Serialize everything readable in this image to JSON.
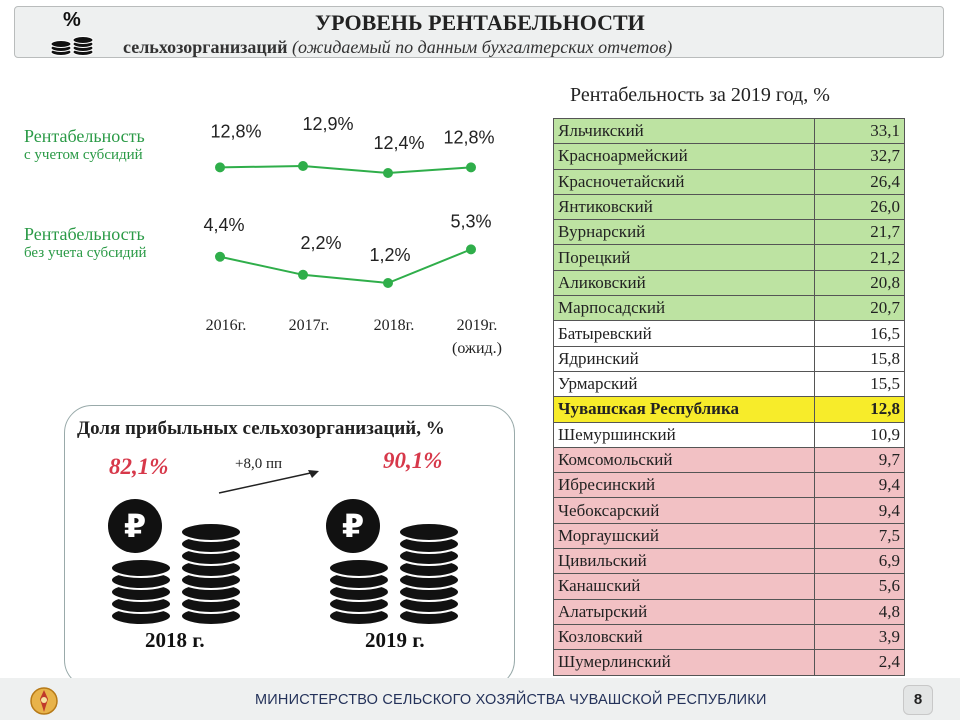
{
  "header": {
    "percent_sign": "%",
    "title": "УРОВЕНЬ РЕНТАБЕЛЬНОСТИ",
    "subtitle_bold": "сельхозорганизаций",
    "subtitle_italic": "(ожидаемый по данным бухгалтерских отчетов)"
  },
  "trend": {
    "series_with": {
      "label_main": "Рентабельность",
      "label_sub": "с учетом субсидий",
      "values": [
        "12,8%",
        "12,9%",
        "12,4%",
        "12,8%"
      ],
      "numbers": [
        12.8,
        12.9,
        12.4,
        12.8
      ]
    },
    "series_without": {
      "label_main": "Рентабельность",
      "label_sub": "без учета субсидий",
      "values": [
        "4,4%",
        "2,2%",
        "1,2%",
        "5,3%"
      ],
      "numbers": [
        4.4,
        2.2,
        1.2,
        5.3
      ]
    },
    "years": [
      "2016г.",
      "2017г.",
      "2018г.",
      "2019г."
    ],
    "year_note": "(ожид.)"
  },
  "profit_share": {
    "title": "Доля прибыльных сельхозорганизаций, %",
    "value_2018": "82,1%",
    "value_2019": "90,1%",
    "delta": "+8,0 пп",
    "year_2018": "2018 г.",
    "year_2019": "2019 г."
  },
  "table": {
    "title": "Рентабельность  за 2019 год, %",
    "rows": [
      {
        "name": "Яльчикский",
        "value": "33,1",
        "status": "green"
      },
      {
        "name": "Красноармейский",
        "value": "32,7",
        "status": "green"
      },
      {
        "name": "Красночетайский",
        "value": "26,4",
        "status": "green"
      },
      {
        "name": "Янтиковский",
        "value": "26,0",
        "status": "green"
      },
      {
        "name": "Вурнарский",
        "value": "21,7",
        "status": "green"
      },
      {
        "name": "Порецкий",
        "value": "21,2",
        "status": "green"
      },
      {
        "name": "Аликовский",
        "value": "20,8",
        "status": "green"
      },
      {
        "name": "Марпосадский",
        "value": "20,7",
        "status": "green"
      },
      {
        "name": "Батыревский",
        "value": "16,5",
        "status": "white"
      },
      {
        "name": "Ядринский",
        "value": "15,8",
        "status": "white"
      },
      {
        "name": "Урмарский",
        "value": "15,5",
        "status": "white"
      },
      {
        "name": "Чувашская Республика",
        "value": "12,8",
        "status": "yellow"
      },
      {
        "name": "Шемуршинский",
        "value": "10,9",
        "status": "white"
      },
      {
        "name": "Комсомольский",
        "value": "9,7",
        "status": "red"
      },
      {
        "name": "Ибресинский",
        "value": "9,4",
        "status": "red"
      },
      {
        "name": "Чебоксарский",
        "value": "9,4",
        "status": "red"
      },
      {
        "name": "Моргаушский",
        "value": "7,5",
        "status": "red"
      },
      {
        "name": "Цивильский",
        "value": "6,9",
        "status": "red"
      },
      {
        "name": "Канашский",
        "value": "5,6",
        "status": "red"
      },
      {
        "name": "Алатырский",
        "value": "4,8",
        "status": "red"
      },
      {
        "name": "Козловский",
        "value": "3,9",
        "status": "red"
      },
      {
        "name": "Шумерлинский",
        "value": "2,4",
        "status": "red"
      }
    ]
  },
  "footer": {
    "ministry": "МИНИСТЕРСТВО СЕЛЬСКОГО ХОЗЯЙСТВА ЧУВАШСКОЙ РЕСПУБЛИКИ",
    "page": "8"
  },
  "colors": {
    "line_green": "#2fae4a",
    "accent_red": "#d7384a",
    "row_green": "#bde3a2",
    "row_yellow": "#f7ec2a",
    "row_red": "#f2c1c4"
  }
}
